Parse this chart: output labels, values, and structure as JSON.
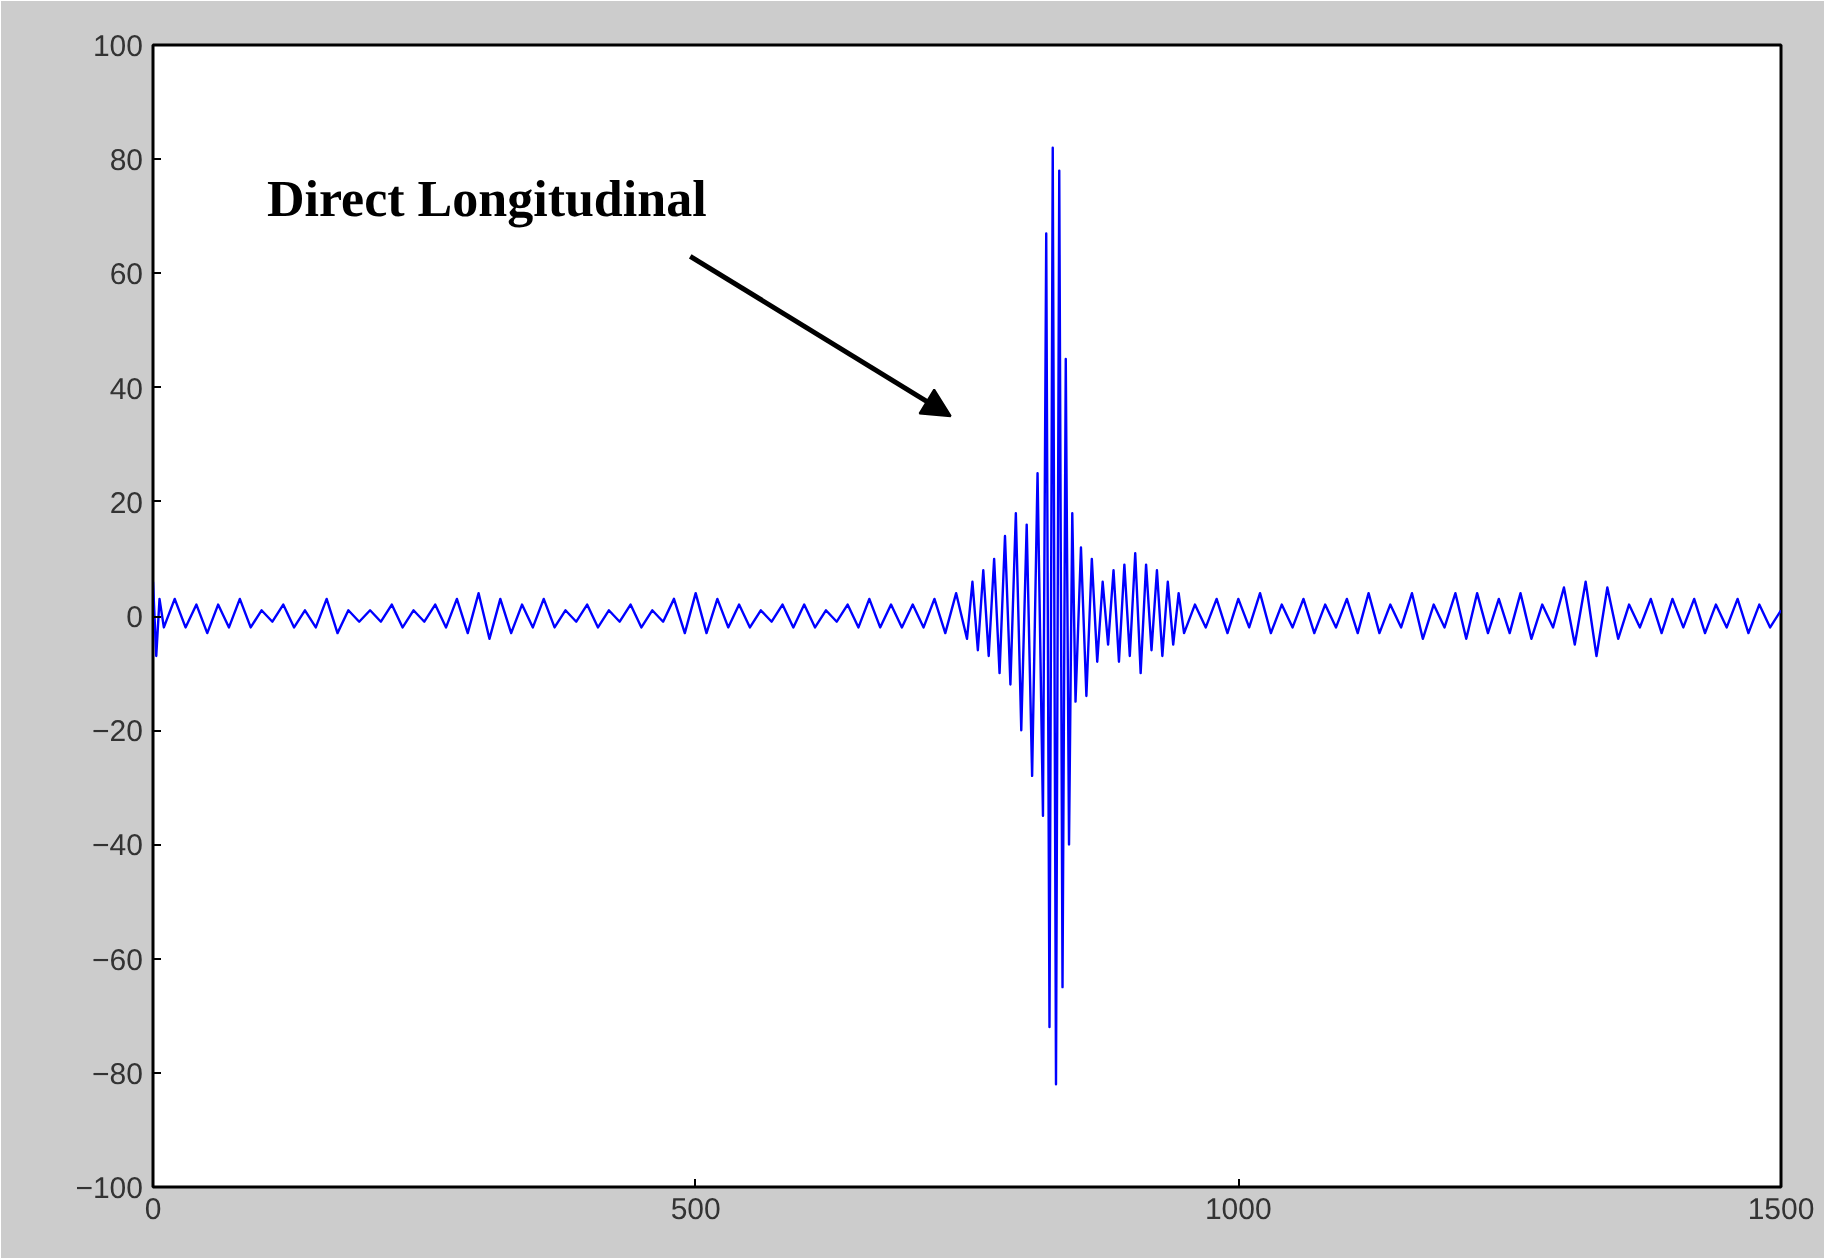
{
  "chart_data": {
    "type": "line",
    "x": [
      0,
      3,
      6,
      10,
      20,
      30,
      40,
      50,
      60,
      70,
      80,
      90,
      100,
      110,
      120,
      130,
      140,
      150,
      160,
      170,
      180,
      190,
      200,
      210,
      220,
      230,
      240,
      250,
      260,
      270,
      280,
      290,
      300,
      310,
      320,
      330,
      340,
      350,
      360,
      370,
      380,
      390,
      400,
      410,
      420,
      430,
      440,
      450,
      460,
      470,
      480,
      490,
      500,
      510,
      520,
      530,
      540,
      550,
      560,
      570,
      580,
      590,
      600,
      610,
      620,
      630,
      640,
      650,
      660,
      670,
      680,
      690,
      700,
      710,
      720,
      730,
      740,
      750,
      755,
      760,
      765,
      770,
      775,
      780,
      785,
      790,
      795,
      800,
      805,
      810,
      815,
      820,
      823,
      826,
      829,
      832,
      835,
      838,
      841,
      844,
      847,
      850,
      855,
      860,
      865,
      870,
      875,
      880,
      885,
      890,
      895,
      900,
      905,
      910,
      915,
      920,
      925,
      930,
      935,
      940,
      945,
      950,
      960,
      970,
      980,
      990,
      1000,
      1010,
      1020,
      1030,
      1040,
      1050,
      1060,
      1070,
      1080,
      1090,
      1100,
      1110,
      1120,
      1130,
      1140,
      1150,
      1160,
      1170,
      1180,
      1190,
      1200,
      1210,
      1220,
      1230,
      1240,
      1250,
      1260,
      1270,
      1280,
      1290,
      1300,
      1310,
      1320,
      1330,
      1340,
      1350,
      1360,
      1370,
      1380,
      1390,
      1400,
      1410,
      1420,
      1430,
      1440,
      1450,
      1460,
      1470,
      1480,
      1490,
      1500
    ],
    "series": [
      {
        "color": "#0000ff",
        "values": [
          6,
          -7,
          3,
          -2,
          3,
          -2,
          2,
          -3,
          2,
          -2,
          3,
          -2,
          1,
          -1,
          2,
          -2,
          1,
          -2,
          3,
          -3,
          1,
          -1,
          1,
          -1,
          2,
          -2,
          1,
          -1,
          2,
          -2,
          3,
          -3,
          4,
          -4,
          3,
          -3,
          2,
          -2,
          3,
          -2,
          1,
          -1,
          2,
          -2,
          1,
          -1,
          2,
          -2,
          1,
          -1,
          3,
          -3,
          4,
          -3,
          3,
          -2,
          2,
          -2,
          1,
          -1,
          2,
          -2,
          2,
          -2,
          1,
          -1,
          2,
          -2,
          3,
          -2,
          2,
          -2,
          2,
          -2,
          3,
          -3,
          4,
          -4,
          6,
          -6,
          8,
          -7,
          10,
          -10,
          14,
          -12,
          18,
          -20,
          16,
          -28,
          25,
          -35,
          67,
          -72,
          82,
          -82,
          78,
          -65,
          45,
          -40,
          18,
          -15,
          12,
          -14,
          10,
          -8,
          6,
          -5,
          8,
          -8,
          9,
          -7,
          11,
          -10,
          9,
          -6,
          8,
          -7,
          6,
          -5,
          4,
          -3,
          2,
          -2,
          3,
          -3,
          3,
          -2,
          4,
          -3,
          2,
          -2,
          3,
          -3,
          2,
          -2,
          3,
          -3,
          4,
          -3,
          2,
          -2,
          4,
          -4,
          2,
          -2,
          4,
          -4,
          4,
          -3,
          3,
          -3,
          4,
          -4,
          2,
          -2,
          5,
          -5,
          6,
          -7,
          5,
          -4,
          2,
          -2,
          3,
          -3,
          3,
          -2,
          3,
          -3,
          2,
          -2,
          3,
          -3,
          2,
          -2,
          1
        ]
      }
    ],
    "xlim": [
      0,
      1500
    ],
    "xticks": [
      0,
      500,
      1000,
      1500
    ],
    "ylim": [
      -100,
      100
    ],
    "yticks": [
      -100,
      -80,
      -60,
      -40,
      -20,
      0,
      20,
      40,
      60,
      80,
      100
    ],
    "grid": false,
    "annotations": [
      "Direct Longitudinal"
    ]
  }
}
